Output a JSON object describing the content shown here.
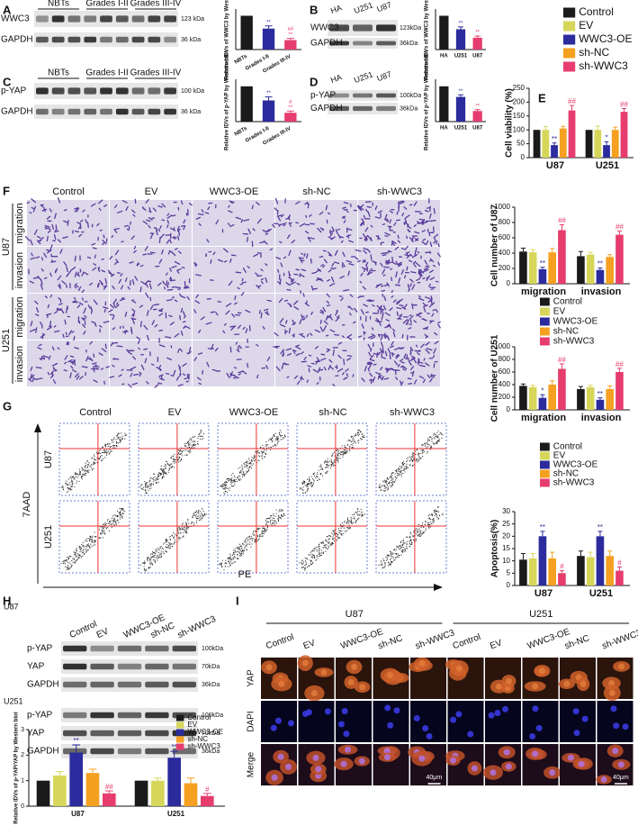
{
  "panels": [
    "A",
    "B",
    "C",
    "D",
    "E",
    "F",
    "G",
    "H",
    "I"
  ],
  "blots": [
    {
      "rows": [
        "WWC3",
        "GAPDH"
      ],
      "sizes": [
        "123 kDa",
        "36 kDa"
      ],
      "groups": [
        "NBTs",
        "Grades I-II",
        "Grades III-IV"
      ]
    },
    {
      "rows": [
        "WWC3",
        "GAPDH"
      ],
      "sizes": [
        "123kDa",
        "36kDa"
      ],
      "groups": [
        "HA",
        "U251",
        "U87"
      ]
    },
    {
      "rows": [
        "p-YAP",
        "GAPDH"
      ],
      "sizes": [
        "100 kDa",
        "36 kDa"
      ],
      "groups": [
        "NBTs",
        "Grades I-II",
        "Grades III-IV"
      ]
    },
    {
      "rows": [
        "p-YAP",
        "GAPDH"
      ],
      "sizes": [
        "100kDa",
        "36kDa"
      ],
      "groups": [
        "HA",
        "U251",
        "U87"
      ]
    },
    {
      "rows": [
        "p-YAP",
        "YAP",
        "GAPDH",
        "p-YAP",
        "YAP",
        "GAPDH"
      ],
      "sizes": [
        "100kDa",
        "70kDa",
        "36kDa",
        "100kDa",
        "70kDa",
        "36kDa"
      ],
      "groups": [
        "Control",
        "EV",
        "WWC3-OE",
        "sh-NC",
        "sh-WWC3"
      ],
      "cells": [
        "U87",
        "U251"
      ]
    }
  ],
  "migration": {
    "columns": [
      "Control",
      "EV",
      "WWC3-OE",
      "sh-NC",
      "sh-WWC3"
    ],
    "cells": [
      "U87",
      "U251"
    ],
    "rows": [
      "migration",
      "invasion"
    ]
  },
  "flow": {
    "columns": [
      "Control",
      "EV",
      "WWC3-OE",
      "sh-NC",
      "sh-WWC3"
    ],
    "cells": [
      "U87",
      "U251"
    ],
    "ylabel": "7AAD",
    "xlabel": "PE"
  },
  "staining": {
    "cells": [
      "U87",
      "U251"
    ],
    "columns": [
      "Control",
      "EV",
      "WWC3-OE",
      "sh-NC",
      "sh-WWC3"
    ],
    "rows": [
      "YAP",
      "DAPI",
      "Merge"
    ],
    "scale": "40μm"
  },
  "chart_data": [
    {
      "type": "bar",
      "ylabel": "Relative IDVs of WWC3 by Western blot",
      "categories": [
        "NBTs",
        "Grades I-II",
        "Grades III-IV"
      ],
      "values": [
        1,
        0.62,
        0.28
      ],
      "errors": [
        0,
        0.08,
        0.05
      ],
      "colors": [
        "#1a1a1a",
        "#2b2b9e",
        "#e63d6e"
      ],
      "annotations": [
        null,
        [
          "**"
        ],
        [
          "##",
          "**"
        ]
      ],
      "ylim": [
        0,
        1.2
      ]
    },
    {
      "type": "bar",
      "ylabel": "Relative IDVs of WWC3 by Western blot",
      "categories": [
        "HA",
        "U251",
        "U87"
      ],
      "values": [
        1,
        0.6,
        0.35
      ],
      "errors": [
        0,
        0.07,
        0.05
      ],
      "colors": [
        "#1a1a1a",
        "#2b2b9e",
        "#e63d6e"
      ],
      "annotations": [
        null,
        [
          "**"
        ],
        [
          "**"
        ]
      ],
      "ylim": [
        0,
        1.2
      ]
    },
    {
      "type": "bar",
      "ylabel": "Relative IDVs of p-YAP by Western blot",
      "categories": [
        "NBTs",
        "Grades I-II",
        "Grades III-IV"
      ],
      "values": [
        1,
        0.6,
        0.25
      ],
      "errors": [
        0,
        0.1,
        0.05
      ],
      "colors": [
        "#1a1a1a",
        "#2b2b9e",
        "#e63d6e"
      ],
      "annotations": [
        null,
        [
          "**"
        ],
        [
          "#",
          "**"
        ]
      ],
      "ylim": [
        0,
        1.2
      ]
    },
    {
      "type": "bar",
      "ylabel": "Relative IDVs of p-YAP by Western blot",
      "categories": [
        "HA",
        "U251",
        "U87"
      ],
      "values": [
        1,
        0.7,
        0.3
      ],
      "errors": [
        0,
        0.06,
        0.04
      ],
      "colors": [
        "#1a1a1a",
        "#2b2b9e",
        "#e63d6e"
      ],
      "annotations": [
        null,
        [
          "**"
        ],
        [
          "**"
        ]
      ],
      "ylim": [
        0,
        1.2
      ]
    },
    {
      "type": "bar",
      "ylabel": "Cell viability (%)",
      "categories": [
        "U87",
        "U251"
      ],
      "ylim": [
        0,
        250
      ],
      "yticks": [
        0,
        50,
        100,
        150,
        200,
        250
      ],
      "series": [
        {
          "name": "Control",
          "color": "#1a1a1a",
          "values": [
            100,
            100
          ],
          "errors": [
            0,
            0
          ]
        },
        {
          "name": "EV",
          "color": "#d6d65a",
          "values": [
            100,
            100
          ],
          "errors": [
            12,
            14
          ]
        },
        {
          "name": "WWC3-OE",
          "color": "#2b2b9e",
          "values": [
            45,
            45
          ],
          "errors": [
            8,
            12
          ],
          "annotations": [
            "**",
            "*"
          ]
        },
        {
          "name": "sh-NC",
          "color": "#f5a020",
          "values": [
            105,
            100
          ],
          "errors": [
            8,
            10
          ]
        },
        {
          "name": "sh-WWC3",
          "color": "#e63d6e",
          "values": [
            170,
            165
          ],
          "errors": [
            18,
            12
          ],
          "annotations": [
            "##",
            "##"
          ]
        }
      ]
    },
    {
      "type": "bar",
      "ylabel": "Cell number of U87",
      "categories": [
        "migration",
        "invasion"
      ],
      "ylim": [
        0,
        1000
      ],
      "yticks": [
        0,
        200,
        400,
        600,
        800,
        1000
      ],
      "series": [
        {
          "name": "Control",
          "color": "#1a1a1a",
          "values": [
            420,
            360
          ],
          "errors": [
            45,
            60
          ]
        },
        {
          "name": "EV",
          "color": "#d6d65a",
          "values": [
            410,
            380
          ],
          "errors": [
            35,
            30
          ]
        },
        {
          "name": "WWC3-OE",
          "color": "#2b2b9e",
          "values": [
            190,
            180
          ],
          "errors": [
            25,
            25
          ],
          "annotations": [
            "**",
            "**"
          ]
        },
        {
          "name": "sh-NC",
          "color": "#f5a020",
          "values": [
            410,
            350
          ],
          "errors": [
            50,
            30
          ]
        },
        {
          "name": "sh-WWC3",
          "color": "#e63d6e",
          "values": [
            700,
            640
          ],
          "errors": [
            70,
            50
          ],
          "annotations": [
            "##",
            "##"
          ]
        }
      ]
    },
    {
      "type": "bar",
      "ylabel": "Cell number of U251",
      "categories": [
        "migration",
        "invasion"
      ],
      "ylim": [
        0,
        1000
      ],
      "yticks": [
        0,
        200,
        400,
        600,
        800,
        1000
      ],
      "series": [
        {
          "name": "Control",
          "color": "#1a1a1a",
          "values": [
            380,
            330
          ],
          "errors": [
            30,
            40
          ]
        },
        {
          "name": "EV",
          "color": "#d6d65a",
          "values": [
            360,
            360
          ],
          "errors": [
            30,
            30
          ]
        },
        {
          "name": "WWC3-OE",
          "color": "#2b2b9e",
          "values": [
            190,
            160
          ],
          "errors": [
            50,
            30
          ],
          "annotations": [
            "*",
            "**"
          ]
        },
        {
          "name": "sh-NC",
          "color": "#f5a020",
          "values": [
            400,
            330
          ],
          "errors": [
            60,
            50
          ]
        },
        {
          "name": "sh-WWC3",
          "color": "#e63d6e",
          "values": [
            650,
            600
          ],
          "errors": [
            80,
            60
          ],
          "annotations": [
            "##",
            "##"
          ]
        }
      ]
    },
    {
      "type": "bar",
      "ylabel": "Apoptosis(%)",
      "categories": [
        "U87",
        "U251"
      ],
      "ylim": [
        0,
        30
      ],
      "yticks": [
        0,
        5,
        10,
        15,
        20,
        25,
        30
      ],
      "series": [
        {
          "name": "Control",
          "color": "#1a1a1a",
          "values": [
            10.5,
            12
          ],
          "errors": [
            2.5,
            2
          ]
        },
        {
          "name": "EV",
          "color": "#d6d65a",
          "values": [
            11,
            11.5
          ],
          "errors": [
            2,
            2
          ]
        },
        {
          "name": "WWC3-OE",
          "color": "#2b2b9e",
          "values": [
            20,
            20
          ],
          "errors": [
            2,
            2
          ],
          "annotations": [
            "**",
            "**"
          ]
        },
        {
          "name": "sh-NC",
          "color": "#f5a020",
          "values": [
            11,
            12
          ],
          "errors": [
            2.5,
            2
          ]
        },
        {
          "name": "sh-WWC3",
          "color": "#e63d6e",
          "values": [
            5,
            6
          ],
          "errors": [
            1,
            1.5
          ],
          "annotations": [
            "#",
            "#"
          ]
        }
      ]
    },
    {
      "type": "bar",
      "ylabel": "Relative IDVs of p-YAP/YAP by Western blot",
      "categories": [
        "U87",
        "U251"
      ],
      "ylim": [
        0,
        3
      ],
      "yticks": [
        0,
        1,
        2,
        3
      ],
      "legend": "upper right",
      "series": [
        {
          "name": "Control",
          "color": "#1a1a1a",
          "values": [
            1,
            1
          ],
          "errors": [
            0,
            0
          ]
        },
        {
          "name": "EV",
          "color": "#d6d65a",
          "values": [
            1.2,
            1
          ],
          "errors": [
            0.15,
            0.1
          ]
        },
        {
          "name": "WWC3-OE",
          "color": "#2b2b9e",
          "values": [
            2.1,
            1.9
          ],
          "errors": [
            0.3,
            0.25
          ],
          "annotations": [
            "**",
            "**"
          ]
        },
        {
          "name": "sh-NC",
          "color": "#f5a020",
          "values": [
            1.3,
            0.9
          ],
          "errors": [
            0.15,
            0.2
          ]
        },
        {
          "name": "sh-WWC3",
          "color": "#e63d6e",
          "values": [
            0.5,
            0.4
          ],
          "errors": [
            0.1,
            0.1
          ],
          "annotations": [
            "##",
            "#"
          ]
        }
      ]
    }
  ]
}
